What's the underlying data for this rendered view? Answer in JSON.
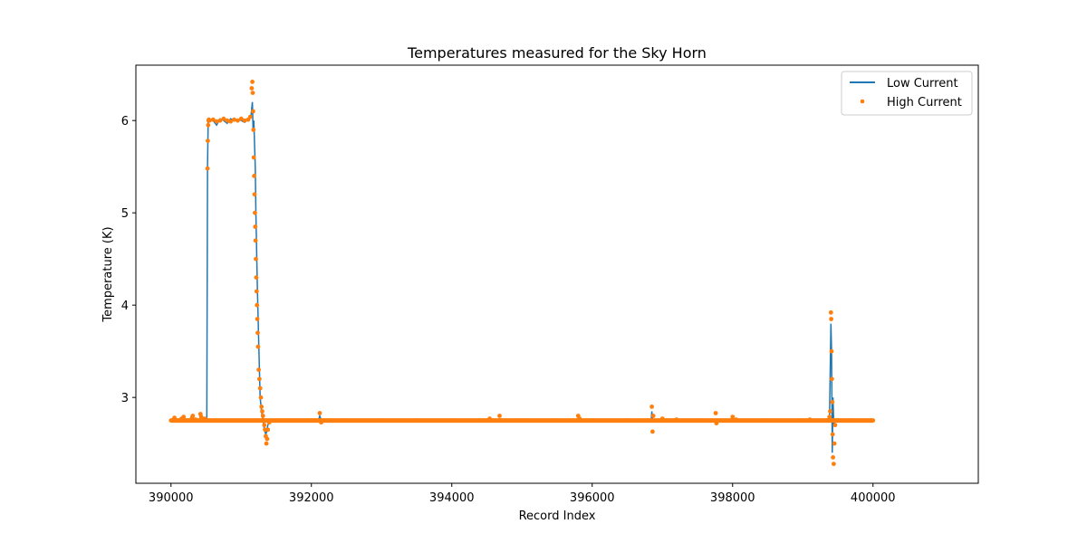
{
  "chart_data": {
    "type": "line",
    "title": "Temperatures measured for the Sky Horn",
    "xlabel": "Record Index",
    "ylabel": "Temperature (K)",
    "xlim": [
      389500,
      401500
    ],
    "ylim": [
      2.07,
      6.6
    ],
    "xticks": [
      390000,
      392000,
      394000,
      396000,
      398000,
      400000
    ],
    "yticks": [
      3,
      4,
      5,
      6
    ],
    "grid": false,
    "legend_position": "top-right",
    "colors": {
      "low": "#1f77b4",
      "high": "#ff7f0e"
    },
    "series": [
      {
        "name": "Low Current",
        "style": "line",
        "x": [
          390000,
          390100,
          390200,
          390300,
          390400,
          390450,
          390500,
          390510,
          390520,
          390530,
          390540,
          390600,
          390650,
          390700,
          390750,
          390800,
          390850,
          390900,
          390950,
          391000,
          391050,
          391100,
          391140,
          391160,
          391170,
          391180,
          391200,
          391210,
          391220,
          391230,
          391250,
          391270,
          391290,
          391310,
          391330,
          391350,
          391360,
          391380,
          391400,
          391500,
          392000,
          392100,
          392120,
          392140,
          393000,
          394000,
          394680,
          394700,
          395000,
          395800,
          396000,
          396840,
          396850,
          396860,
          397000,
          397760,
          397800,
          398000,
          399000,
          399350,
          399380,
          399400,
          399410,
          399420,
          399430,
          399440,
          399460,
          399500,
          400000
        ],
        "y": [
          2.75,
          2.75,
          2.75,
          2.75,
          2.75,
          2.76,
          2.75,
          2.75,
          5.5,
          5.98,
          6.0,
          6.0,
          5.95,
          6.02,
          6.0,
          5.97,
          6.02,
          6.0,
          6.01,
          6.0,
          5.98,
          6.02,
          6.05,
          6.2,
          5.9,
          6.0,
          5.5,
          5.0,
          4.6,
          4.2,
          3.6,
          3.0,
          2.85,
          2.75,
          2.65,
          2.6,
          2.62,
          2.7,
          2.74,
          2.75,
          2.75,
          2.75,
          2.8,
          2.75,
          2.75,
          2.75,
          2.76,
          2.75,
          2.75,
          2.76,
          2.75,
          2.75,
          2.85,
          2.75,
          2.75,
          2.76,
          2.75,
          2.75,
          2.75,
          2.75,
          2.76,
          3.8,
          3.5,
          2.4,
          3.0,
          2.7,
          2.75,
          2.75,
          2.75
        ]
      },
      {
        "name": "High Current",
        "style": "scatter",
        "x": [
          390000,
          390050,
          390100,
          390150,
          390180,
          390200,
          390250,
          390300,
          390310,
          390350,
          390400,
          390420,
          390430,
          390480,
          390500,
          390520,
          390525,
          390530,
          390535,
          390540,
          390550,
          390600,
          390650,
          390700,
          390750,
          390800,
          390850,
          390900,
          390950,
          391000,
          391050,
          391100,
          391130,
          391150,
          391160,
          391165,
          391170,
          391175,
          391180,
          391185,
          391190,
          391195,
          391200,
          391205,
          391210,
          391215,
          391220,
          391225,
          391230,
          391235,
          391240,
          391250,
          391260,
          391270,
          391280,
          391290,
          391300,
          391310,
          391320,
          391330,
          391340,
          391350,
          391360,
          391370,
          391380,
          391400,
          391500,
          391600,
          391800,
          392000,
          392100,
          392120,
          392140,
          392200,
          392500,
          393000,
          393500,
          394000,
          394500,
          394540,
          394680,
          394700,
          395000,
          395500,
          395800,
          395820,
          396000,
          396500,
          396840,
          396850,
          396860,
          396870,
          397000,
          397100,
          397200,
          397500,
          397760,
          397770,
          398000,
          398050,
          398500,
          399000,
          399100,
          399350,
          399380,
          399390,
          399400,
          399405,
          399410,
          399415,
          399420,
          399425,
          399430,
          399440,
          399450,
          399460,
          399500,
          399700,
          400000
        ],
        "y": [
          2.75,
          2.78,
          2.75,
          2.77,
          2.79,
          2.75,
          2.75,
          2.78,
          2.8,
          2.76,
          2.75,
          2.82,
          2.79,
          2.77,
          2.76,
          5.48,
          5.78,
          5.95,
          6.0,
          6.01,
          6.0,
          6.01,
          5.99,
          6.0,
          6.02,
          6.0,
          5.99,
          6.01,
          6.0,
          6.02,
          6.0,
          6.01,
          6.04,
          6.35,
          6.42,
          6.3,
          6.1,
          5.9,
          5.6,
          5.4,
          5.2,
          5.0,
          4.85,
          4.7,
          4.5,
          4.3,
          4.15,
          4.0,
          3.85,
          3.7,
          3.55,
          3.3,
          3.2,
          3.1,
          3.0,
          2.9,
          2.85,
          2.8,
          2.75,
          2.7,
          2.65,
          2.58,
          2.5,
          2.55,
          2.65,
          2.73,
          2.75,
          2.75,
          2.75,
          2.75,
          2.75,
          2.83,
          2.73,
          2.75,
          2.75,
          2.75,
          2.75,
          2.75,
          2.75,
          2.77,
          2.8,
          2.75,
          2.75,
          2.75,
          2.8,
          2.77,
          2.75,
          2.75,
          2.75,
          2.9,
          2.63,
          2.8,
          2.77,
          2.75,
          2.76,
          2.75,
          2.83,
          2.72,
          2.79,
          2.76,
          2.75,
          2.75,
          2.76,
          2.75,
          2.79,
          2.85,
          3.92,
          3.85,
          3.5,
          3.2,
          2.95,
          2.6,
          2.35,
          2.28,
          2.5,
          2.7,
          2.75,
          2.75,
          2.75
        ]
      }
    ]
  }
}
